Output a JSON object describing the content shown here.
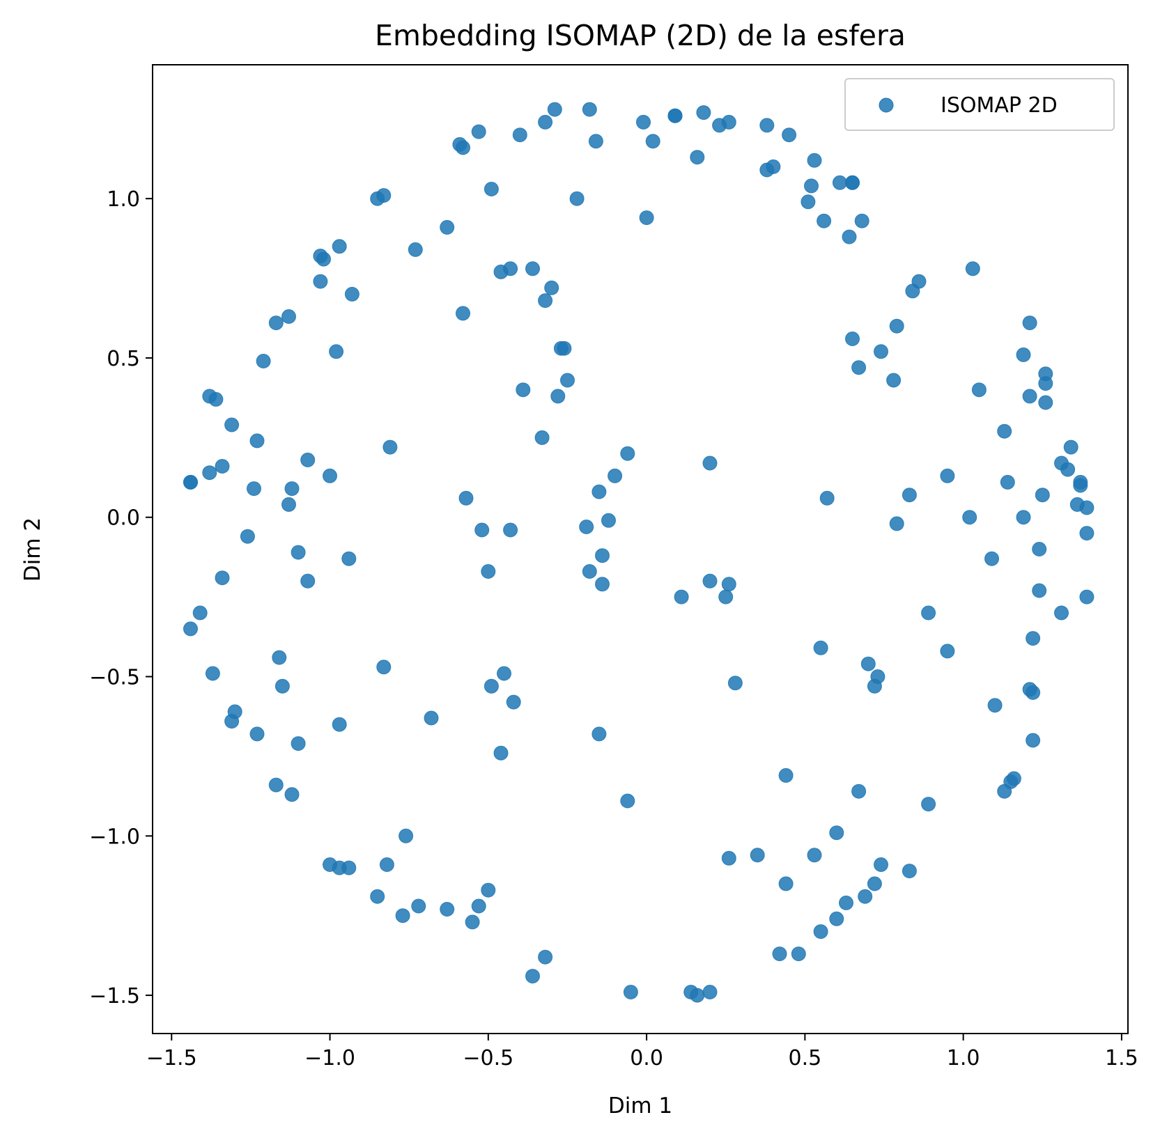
{
  "chart_data": {
    "type": "scatter",
    "title": "Embedding ISOMAP (2D) de la esfera",
    "xlabel": "Dim 1",
    "ylabel": "Dim 2",
    "xlim": [
      -1.56,
      1.52
    ],
    "ylim": [
      -1.62,
      1.42
    ],
    "xticks": [
      -1.5,
      -1.0,
      -0.5,
      0.0,
      0.5,
      1.0,
      1.5
    ],
    "yticks": [
      -1.5,
      -1.0,
      -0.5,
      0.0,
      0.5,
      1.0
    ],
    "xtick_labels": [
      "−1.5",
      "−1.0",
      "−0.5",
      "0.0",
      "0.5",
      "1.0",
      "1.5"
    ],
    "ytick_labels": [
      "−1.5",
      "−1.0",
      "−0.5",
      "0.0",
      "0.5",
      "1.0"
    ],
    "grid": false,
    "legend_position": "top-right",
    "series": [
      {
        "name": "ISOMAP 2D",
        "color": "#1f77b4",
        "alpha": 0.85,
        "points": [
          [
            -0.18,
            1.28
          ],
          [
            -0.29,
            1.28
          ],
          [
            -0.32,
            1.24
          ],
          [
            -0.4,
            1.2
          ],
          [
            -0.53,
            1.21
          ],
          [
            -0.58,
            1.16
          ],
          [
            -0.59,
            1.17
          ],
          [
            -0.16,
            1.18
          ],
          [
            -0.01,
            1.24
          ],
          [
            0.09,
            1.26
          ],
          [
            0.09,
            1.26
          ],
          [
            0.18,
            1.27
          ],
          [
            0.23,
            1.23
          ],
          [
            0.26,
            1.24
          ],
          [
            0.38,
            1.23
          ],
          [
            0.45,
            1.2
          ],
          [
            0.02,
            1.18
          ],
          [
            0.16,
            1.13
          ],
          [
            -0.85,
            1.0
          ],
          [
            -0.83,
            1.01
          ],
          [
            -0.49,
            1.03
          ],
          [
            -0.22,
            1.0
          ],
          [
            0.0,
            0.94
          ],
          [
            -0.63,
            0.91
          ],
          [
            -0.73,
            0.84
          ],
          [
            0.38,
            1.09
          ],
          [
            0.4,
            1.1
          ],
          [
            0.53,
            1.12
          ],
          [
            0.52,
            1.04
          ],
          [
            0.61,
            1.05
          ],
          [
            0.65,
            1.05
          ],
          [
            0.65,
            1.05
          ],
          [
            0.51,
            0.99
          ],
          [
            0.56,
            0.93
          ],
          [
            0.68,
            0.93
          ],
          [
            0.64,
            0.88
          ],
          [
            -0.97,
            0.85
          ],
          [
            -1.03,
            0.82
          ],
          [
            -1.02,
            0.81
          ],
          [
            -1.03,
            0.74
          ],
          [
            -0.93,
            0.7
          ],
          [
            -0.43,
            0.78
          ],
          [
            -0.36,
            0.78
          ],
          [
            -0.46,
            0.77
          ],
          [
            -0.3,
            0.72
          ],
          [
            -0.32,
            0.68
          ],
          [
            -0.58,
            0.64
          ],
          [
            -1.17,
            0.61
          ],
          [
            -1.13,
            0.63
          ],
          [
            -0.98,
            0.52
          ],
          [
            -1.21,
            0.49
          ],
          [
            -0.27,
            0.53
          ],
          [
            -0.26,
            0.53
          ],
          [
            -0.25,
            0.43
          ],
          [
            -0.39,
            0.4
          ],
          [
            -0.28,
            0.38
          ],
          [
            1.03,
            0.78
          ],
          [
            0.86,
            0.74
          ],
          [
            0.84,
            0.71
          ],
          [
            0.79,
            0.6
          ],
          [
            0.65,
            0.56
          ],
          [
            0.74,
            0.52
          ],
          [
            0.67,
            0.47
          ],
          [
            0.78,
            0.43
          ],
          [
            1.21,
            0.61
          ],
          [
            1.19,
            0.51
          ],
          [
            1.26,
            0.45
          ],
          [
            1.26,
            0.42
          ],
          [
            1.21,
            0.38
          ],
          [
            1.26,
            0.36
          ],
          [
            1.05,
            0.4
          ],
          [
            -1.38,
            0.38
          ],
          [
            -1.36,
            0.37
          ],
          [
            -1.31,
            0.29
          ],
          [
            -1.23,
            0.24
          ],
          [
            -0.81,
            0.22
          ],
          [
            -0.33,
            0.25
          ],
          [
            -1.44,
            0.11
          ],
          [
            -1.44,
            0.11
          ],
          [
            -1.38,
            0.14
          ],
          [
            -1.34,
            0.16
          ],
          [
            -1.07,
            0.18
          ],
          [
            -1.0,
            0.13
          ],
          [
            -1.24,
            0.09
          ],
          [
            -1.12,
            0.09
          ],
          [
            -1.13,
            0.04
          ],
          [
            -0.57,
            0.06
          ],
          [
            -0.06,
            0.2
          ],
          [
            -0.1,
            0.13
          ],
          [
            -0.15,
            0.08
          ],
          [
            0.2,
            0.17
          ],
          [
            0.57,
            0.06
          ],
          [
            1.13,
            0.27
          ],
          [
            1.34,
            0.22
          ],
          [
            1.31,
            0.17
          ],
          [
            1.33,
            0.15
          ],
          [
            0.95,
            0.13
          ],
          [
            1.14,
            0.11
          ],
          [
            1.37,
            0.11
          ],
          [
            1.37,
            0.1
          ],
          [
            1.25,
            0.07
          ],
          [
            0.83,
            0.07
          ],
          [
            1.36,
            0.04
          ],
          [
            1.39,
            0.03
          ],
          [
            1.02,
            0.0
          ],
          [
            1.19,
            0.0
          ],
          [
            0.79,
            -0.02
          ],
          [
            1.39,
            -0.05
          ],
          [
            -1.26,
            -0.06
          ],
          [
            -1.1,
            -0.11
          ],
          [
            -0.94,
            -0.13
          ],
          [
            -1.34,
            -0.19
          ],
          [
            -1.07,
            -0.2
          ],
          [
            -0.52,
            -0.04
          ],
          [
            -0.43,
            -0.04
          ],
          [
            -0.19,
            -0.03
          ],
          [
            -0.12,
            -0.01
          ],
          [
            -0.14,
            -0.12
          ],
          [
            -0.5,
            -0.17
          ],
          [
            -0.18,
            -0.17
          ],
          [
            -0.14,
            -0.21
          ],
          [
            0.2,
            -0.2
          ],
          [
            0.26,
            -0.21
          ],
          [
            0.11,
            -0.25
          ],
          [
            0.25,
            -0.25
          ],
          [
            1.09,
            -0.13
          ],
          [
            1.24,
            -0.1
          ],
          [
            1.24,
            -0.23
          ],
          [
            1.39,
            -0.25
          ],
          [
            1.31,
            -0.3
          ],
          [
            0.89,
            -0.3
          ],
          [
            -1.41,
            -0.3
          ],
          [
            -1.44,
            -0.35
          ],
          [
            1.22,
            -0.38
          ],
          [
            0.55,
            -0.41
          ],
          [
            0.95,
            -0.42
          ],
          [
            -1.16,
            -0.44
          ],
          [
            -0.83,
            -0.47
          ],
          [
            -1.37,
            -0.49
          ],
          [
            -1.15,
            -0.53
          ],
          [
            -0.45,
            -0.49
          ],
          [
            -0.49,
            -0.53
          ],
          [
            -0.42,
            -0.58
          ],
          [
            0.28,
            -0.52
          ],
          [
            0.7,
            -0.46
          ],
          [
            0.73,
            -0.5
          ],
          [
            0.72,
            -0.53
          ],
          [
            1.21,
            -0.54
          ],
          [
            1.22,
            -0.55
          ],
          [
            1.1,
            -0.59
          ],
          [
            -1.3,
            -0.61
          ],
          [
            -1.31,
            -0.64
          ],
          [
            -0.97,
            -0.65
          ],
          [
            -0.68,
            -0.63
          ],
          [
            -1.23,
            -0.68
          ],
          [
            -1.1,
            -0.71
          ],
          [
            -0.15,
            -0.68
          ],
          [
            -0.46,
            -0.74
          ],
          [
            1.22,
            -0.7
          ],
          [
            -1.17,
            -0.84
          ],
          [
            -1.12,
            -0.87
          ],
          [
            0.44,
            -0.81
          ],
          [
            1.16,
            -0.82
          ],
          [
            1.15,
            -0.83
          ],
          [
            1.13,
            -0.86
          ],
          [
            0.67,
            -0.86
          ],
          [
            -0.06,
            -0.89
          ],
          [
            0.89,
            -0.9
          ],
          [
            -0.76,
            -1.0
          ],
          [
            0.6,
            -0.99
          ],
          [
            -1.0,
            -1.09
          ],
          [
            -0.97,
            -1.1
          ],
          [
            -0.94,
            -1.1
          ],
          [
            -0.82,
            -1.09
          ],
          [
            0.26,
            -1.07
          ],
          [
            0.35,
            -1.06
          ],
          [
            0.53,
            -1.06
          ],
          [
            0.74,
            -1.09
          ],
          [
            0.83,
            -1.11
          ],
          [
            -0.85,
            -1.19
          ],
          [
            -0.5,
            -1.17
          ],
          [
            -0.72,
            -1.22
          ],
          [
            -0.77,
            -1.25
          ],
          [
            -0.63,
            -1.23
          ],
          [
            -0.53,
            -1.22
          ],
          [
            -0.55,
            -1.27
          ],
          [
            0.44,
            -1.15
          ],
          [
            0.72,
            -1.15
          ],
          [
            0.69,
            -1.19
          ],
          [
            0.63,
            -1.21
          ],
          [
            0.6,
            -1.26
          ],
          [
            0.55,
            -1.3
          ],
          [
            -0.32,
            -1.38
          ],
          [
            -0.36,
            -1.44
          ],
          [
            0.42,
            -1.37
          ],
          [
            0.48,
            -1.37
          ],
          [
            -0.05,
            -1.49
          ],
          [
            0.14,
            -1.49
          ],
          [
            0.16,
            -1.5
          ],
          [
            0.2,
            -1.49
          ]
        ]
      }
    ]
  }
}
